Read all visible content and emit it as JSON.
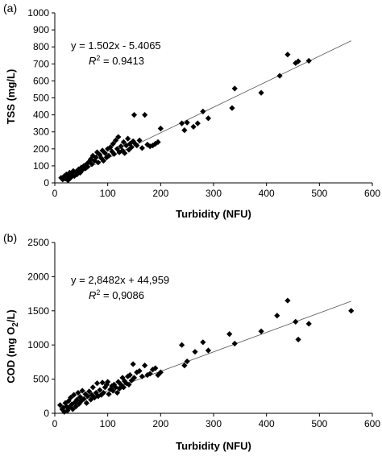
{
  "chart_data": [
    {
      "type": "scatter",
      "panel_label": "(a)",
      "xlabel": "Turbidity (NFU)",
      "ylabel": "TSS (mg/L)",
      "xlim": [
        0,
        600
      ],
      "ylim": [
        0,
        1000
      ],
      "xticks": [
        0,
        100,
        200,
        300,
        400,
        500,
        600
      ],
      "yticks": [
        0,
        100,
        200,
        300,
        400,
        500,
        600,
        700,
        800,
        900,
        1000
      ],
      "grid": false,
      "equation": "y = 1.502x - 5.4065",
      "r2_value": "= 0.9413",
      "trendline": {
        "slope": 1.502,
        "intercept": -5.4065,
        "x_range": [
          14,
          560
        ]
      },
      "points": [
        [
          12,
          30
        ],
        [
          15,
          20
        ],
        [
          18,
          40
        ],
        [
          20,
          25
        ],
        [
          22,
          50
        ],
        [
          24,
          35
        ],
        [
          25,
          15
        ],
        [
          27,
          45
        ],
        [
          28,
          60
        ],
        [
          30,
          30
        ],
        [
          32,
          55
        ],
        [
          35,
          70
        ],
        [
          37,
          40
        ],
        [
          40,
          65
        ],
        [
          42,
          50
        ],
        [
          45,
          80
        ],
        [
          48,
          60
        ],
        [
          50,
          90
        ],
        [
          52,
          75
        ],
        [
          55,
          100
        ],
        [
          58,
          85
        ],
        [
          60,
          110
        ],
        [
          62,
          95
        ],
        [
          65,
          125
        ],
        [
          68,
          140
        ],
        [
          70,
          110
        ],
        [
          72,
          160
        ],
        [
          75,
          130
        ],
        [
          78,
          150
        ],
        [
          80,
          180
        ],
        [
          82,
          120
        ],
        [
          85,
          165
        ],
        [
          88,
          145
        ],
        [
          90,
          190
        ],
        [
          92,
          130
        ],
        [
          95,
          175
        ],
        [
          98,
          150
        ],
        [
          100,
          200
        ],
        [
          102,
          160
        ],
        [
          105,
          210
        ],
        [
          108,
          185
        ],
        [
          110,
          230
        ],
        [
          112,
          170
        ],
        [
          115,
          250
        ],
        [
          118,
          200
        ],
        [
          120,
          270
        ],
        [
          122,
          180
        ],
        [
          125,
          215
        ],
        [
          128,
          190
        ],
        [
          130,
          240
        ],
        [
          132,
          175
        ],
        [
          135,
          220
        ],
        [
          138,
          260
        ],
        [
          140,
          195
        ],
        [
          142,
          230
        ],
        [
          145,
          210
        ],
        [
          148,
          245
        ],
        [
          150,
          400
        ],
        [
          152,
          230
        ],
        [
          155,
          220
        ],
        [
          160,
          250
        ],
        [
          165,
          205
        ],
        [
          170,
          400
        ],
        [
          175,
          225
        ],
        [
          180,
          215
        ],
        [
          185,
          220
        ],
        [
          190,
          230
        ],
        [
          195,
          240
        ],
        [
          200,
          320
        ],
        [
          240,
          350
        ],
        [
          245,
          310
        ],
        [
          250,
          355
        ],
        [
          262,
          330
        ],
        [
          270,
          350
        ],
        [
          280,
          420
        ],
        [
          290,
          380
        ],
        [
          335,
          440
        ],
        [
          340,
          555
        ],
        [
          390,
          530
        ],
        [
          425,
          630
        ],
        [
          440,
          755
        ],
        [
          455,
          705
        ],
        [
          460,
          715
        ],
        [
          480,
          718
        ]
      ]
    },
    {
      "type": "scatter",
      "panel_label": "(b)",
      "xlabel": "Turbidity (NFU)",
      "ylabel_parts": [
        "COD (mg O",
        "2",
        "/L)"
      ],
      "xlim": [
        0,
        600
      ],
      "ylim": [
        0,
        2500
      ],
      "xticks": [
        0,
        100,
        200,
        300,
        400,
        500,
        600
      ],
      "yticks": [
        0,
        500,
        1000,
        1500,
        2000,
        2500
      ],
      "grid": false,
      "equation": "y = 2,8482x + 44,959",
      "r2_value": "= 0,9086",
      "trendline": {
        "slope": 2.8482,
        "intercept": 44.959,
        "x_range": [
          12,
          560
        ]
      },
      "points": [
        [
          10,
          120
        ],
        [
          14,
          60
        ],
        [
          16,
          80
        ],
        [
          18,
          20
        ],
        [
          20,
          150
        ],
        [
          22,
          100
        ],
        [
          24,
          40
        ],
        [
          26,
          180
        ],
        [
          28,
          90
        ],
        [
          30,
          230
        ],
        [
          32,
          130
        ],
        [
          34,
          60
        ],
        [
          36,
          270
        ],
        [
          38,
          160
        ],
        [
          40,
          100
        ],
        [
          42,
          200
        ],
        [
          44,
          300
        ],
        [
          46,
          140
        ],
        [
          48,
          240
        ],
        [
          50,
          180
        ],
        [
          52,
          330
        ],
        [
          55,
          210
        ],
        [
          58,
          280
        ],
        [
          60,
          150
        ],
        [
          62,
          250
        ],
        [
          65,
          320
        ],
        [
          68,
          200
        ],
        [
          70,
          270
        ],
        [
          72,
          380
        ],
        [
          75,
          230
        ],
        [
          78,
          300
        ],
        [
          80,
          440
        ],
        [
          82,
          250
        ],
        [
          85,
          340
        ],
        [
          88,
          270
        ],
        [
          90,
          450
        ],
        [
          92,
          300
        ],
        [
          95,
          380
        ],
        [
          98,
          420
        ],
        [
          100,
          460
        ],
        [
          102,
          280
        ],
        [
          105,
          350
        ],
        [
          108,
          400
        ],
        [
          110,
          330
        ],
        [
          112,
          420
        ],
        [
          115,
          380
        ],
        [
          118,
          300
        ],
        [
          120,
          460
        ],
        [
          122,
          360
        ],
        [
          125,
          420
        ],
        [
          128,
          520
        ],
        [
          130,
          380
        ],
        [
          132,
          470
        ],
        [
          135,
          440
        ],
        [
          138,
          540
        ],
        [
          140,
          420
        ],
        [
          142,
          560
        ],
        [
          145,
          480
        ],
        [
          148,
          720
        ],
        [
          150,
          520
        ],
        [
          155,
          600
        ],
        [
          160,
          620
        ],
        [
          165,
          540
        ],
        [
          170,
          700
        ],
        [
          175,
          560
        ],
        [
          180,
          580
        ],
        [
          185,
          640
        ],
        [
          190,
          660
        ],
        [
          195,
          560
        ],
        [
          200,
          600
        ],
        [
          240,
          1000
        ],
        [
          245,
          700
        ],
        [
          250,
          760
        ],
        [
          265,
          900
        ],
        [
          280,
          1040
        ],
        [
          290,
          920
        ],
        [
          330,
          1160
        ],
        [
          340,
          1020
        ],
        [
          390,
          1200
        ],
        [
          420,
          1430
        ],
        [
          440,
          1650
        ],
        [
          455,
          1340
        ],
        [
          460,
          1080
        ],
        [
          480,
          1310
        ],
        [
          560,
          1500
        ]
      ]
    }
  ]
}
